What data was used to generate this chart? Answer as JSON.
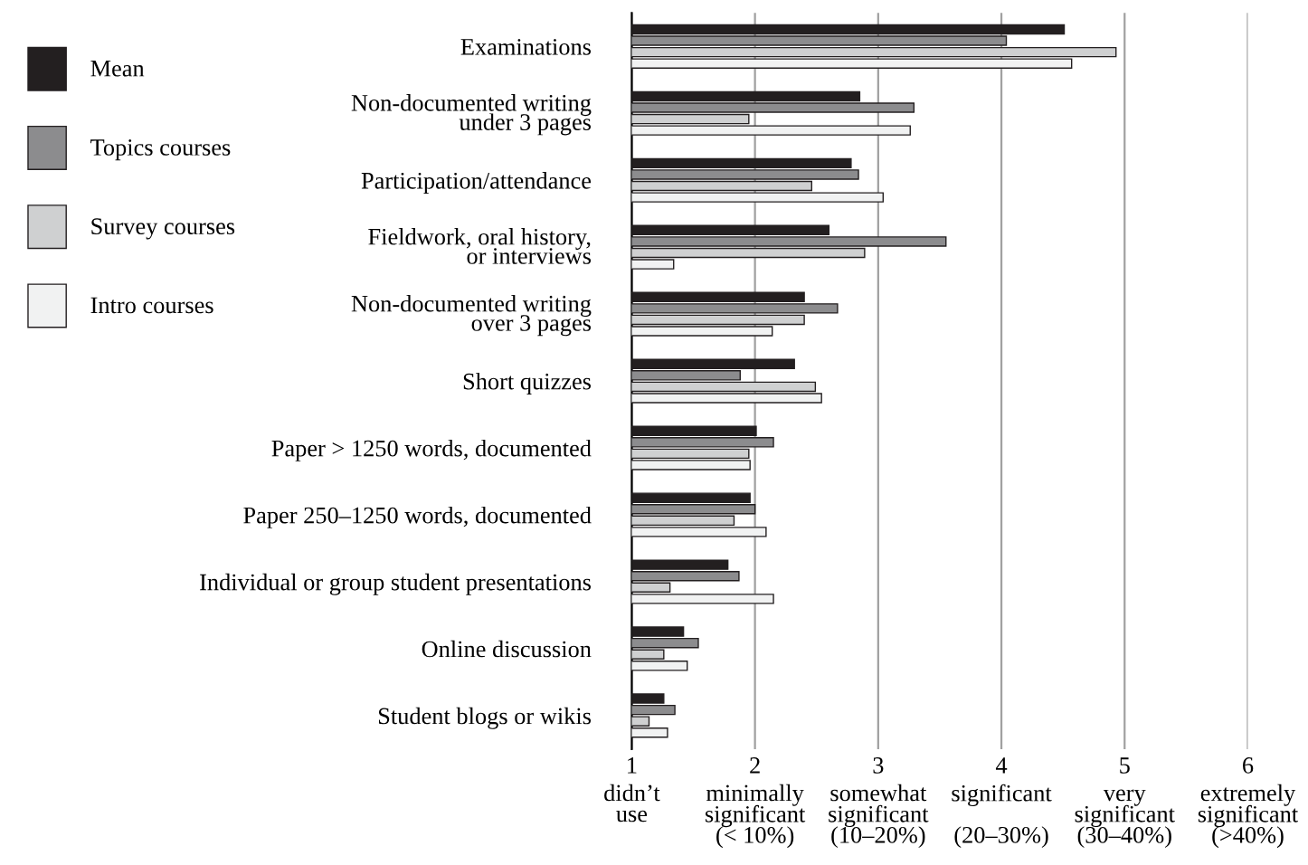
{
  "chart_data": {
    "type": "bar",
    "orientation": "horizontal",
    "categories": [
      "Examinations",
      "Non-documented writing\nunder 3 pages",
      "Participation/attendance",
      "Fieldwork, oral history,\nor interviews",
      "Non-documented writing\nover 3 pages",
      "Short quizzes",
      "Paper > 1250 words, documented",
      "Paper 250–1250 words, documented",
      "Individual or group student presentations",
      "Online discussion",
      "Student blogs or wikis"
    ],
    "series": [
      {
        "name": "Mean",
        "color": "#231f20",
        "values": [
          4.51,
          2.85,
          2.78,
          2.6,
          2.4,
          2.32,
          2.01,
          1.96,
          1.78,
          1.42,
          1.26
        ]
      },
      {
        "name": "Topics courses",
        "color": "#8c8c8e",
        "values": [
          4.04,
          3.29,
          2.84,
          3.55,
          2.67,
          1.88,
          2.15,
          2.0,
          1.87,
          1.54,
          1.35
        ]
      },
      {
        "name": "Survey courses",
        "color": "#cfd0d1",
        "values": [
          4.93,
          1.95,
          2.46,
          2.89,
          2.4,
          2.49,
          1.95,
          1.83,
          1.31,
          1.26,
          1.14
        ]
      },
      {
        "name": "Intro courses",
        "color": "#f1f2f2",
        "values": [
          4.57,
          3.26,
          3.04,
          1.34,
          2.14,
          2.54,
          1.96,
          2.09,
          2.15,
          1.45,
          1.29
        ]
      }
    ],
    "xlim": [
      1,
      6
    ],
    "xticks": [
      1,
      2,
      3,
      4,
      5,
      6
    ],
    "annotations": [
      "didn’t\nuse",
      "minimally\nsignificant\n(< 10%)",
      "somewhat\nsignificant\n(10–20%)",
      "significant\n\n(20–30%)",
      "very\nsignificant\n(30–40%)",
      "extremely\nsignificant\n(>40%)"
    ],
    "grid": "x",
    "legend": "left"
  }
}
